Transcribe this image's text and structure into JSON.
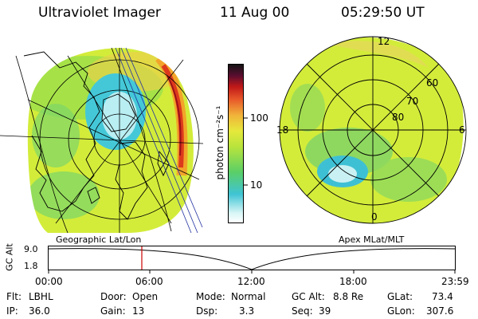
{
  "header": {
    "instrument": "Ultraviolet Imager",
    "date": "11 Aug 00",
    "time": "05:29:50 UT"
  },
  "colorbar": {
    "label": "photon cm⁻²s⁻¹",
    "tick_100": "100",
    "tick_10": "10"
  },
  "left_panel": {
    "caption": "Geographic Lat/Lon"
  },
  "right_panel": {
    "caption": "Apex MLat/MLT",
    "mlt_12": "12",
    "mlt_18": "18",
    "mlt_6": "6",
    "mlt_0": "0",
    "lat_60": "60",
    "lat_70": "70",
    "lat_80": "80"
  },
  "altitude_plot": {
    "ylabel": "GC Alt",
    "ytick_top": "9.0",
    "ytick_bottom": "1.8",
    "xticks": [
      "00:00",
      "06:00",
      "12:00",
      "18:00",
      "23:59"
    ]
  },
  "info": {
    "flt_label": "Flt:",
    "flt_value": "LBHL",
    "ip_label": "IP:",
    "ip_value": "36.0",
    "door_label": "Door:",
    "door_value": "Open",
    "gain_label": "Gain:",
    "gain_value": "13",
    "mode_label": "Mode:",
    "mode_value": "Normal",
    "dsp_label": "Dsp:",
    "dsp_value": "3.3",
    "gcalt_label": "GC Alt:",
    "gcalt_value": "8.8 Re",
    "seq_label": "Seq:",
    "seq_value": "39",
    "glat_label": "GLat:",
    "glat_value": "73.4",
    "glon_label": "GLon:",
    "glon_value": "307.6"
  },
  "colors": {
    "background": "#ffffff",
    "marker": "#cc0000",
    "image_base": "#d4ec3a"
  }
}
